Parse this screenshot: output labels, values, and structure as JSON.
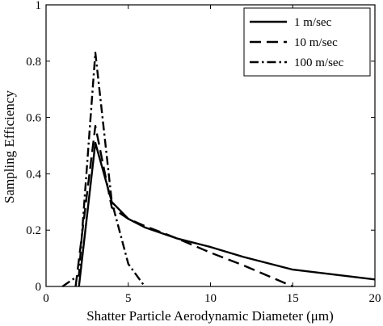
{
  "chart_data": {
    "type": "line",
    "xlabel": "Shatter Particle Aerodynamic Diameter (μm)",
    "ylabel": "Sampling Efficiency",
    "xlim": [
      0,
      20
    ],
    "ylim": [
      0,
      1
    ],
    "xticks": [
      0,
      5,
      10,
      15,
      20
    ],
    "yticks": [
      0,
      0.2,
      0.4,
      0.6,
      0.8,
      1
    ],
    "xtick_labels": [
      "0",
      "5",
      "10",
      "15",
      "20"
    ],
    "ytick_labels": [
      "0",
      "0.2",
      "0.4",
      "0.6",
      "0.8",
      "1"
    ],
    "legend_position": "top-right",
    "grid": false,
    "series": [
      {
        "name": "1 m/sec",
        "style": "solid",
        "x": [
          2,
          3,
          4,
          5,
          6,
          8,
          10,
          12,
          15,
          20
        ],
        "y": [
          0,
          0.51,
          0.3,
          0.24,
          0.21,
          0.17,
          0.14,
          0.105,
          0.06,
          0.025
        ]
      },
      {
        "name": "10 m/sec",
        "style": "dashed",
        "x": [
          1.8,
          3,
          4,
          5,
          6,
          8,
          10,
          12,
          15
        ],
        "y": [
          0,
          0.57,
          0.28,
          0.24,
          0.215,
          0.17,
          0.12,
          0.075,
          0
        ]
      },
      {
        "name": "100 m/sec",
        "style": "dashdot",
        "x": [
          1,
          2,
          3,
          4,
          5,
          6
        ],
        "y": [
          0,
          0.04,
          0.83,
          0.3,
          0.08,
          0
        ]
      }
    ]
  }
}
